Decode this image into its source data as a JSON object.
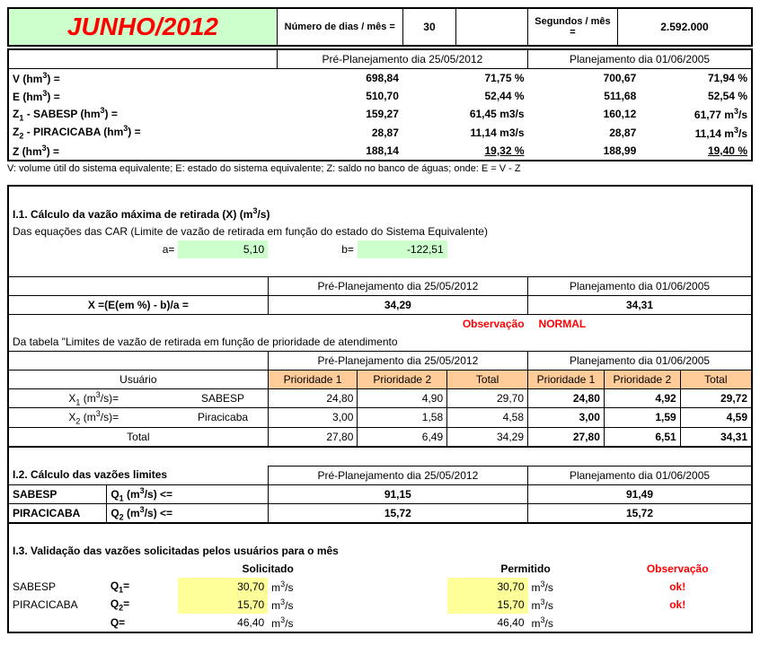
{
  "colors": {
    "title_bg": "#ccffcc",
    "title_text": "#ff0000",
    "peach": "#ffcc99",
    "green": "#ccffcc",
    "yellow": "#ffff99",
    "red": "#ff0000"
  },
  "header": {
    "title": "JUNHO/2012",
    "days_label": "Número de dias / mês =",
    "days_value": "30",
    "seconds_label": "Segundos / mês =",
    "seconds_value": "2.592.000"
  },
  "top": {
    "pre_label": "Pré-Planejamento dia 25/05/2012",
    "plan_label": "Planejamento dia 01/06/2005",
    "rows": [
      {
        "label_html": "V (hm<sup>3</sup>) =",
        "pre_v": "698,84",
        "pre_p": "71,75 %",
        "plan_v": "700,67",
        "plan_p": "71,94 %"
      },
      {
        "label_html": "E (hm<sup>3</sup>) =",
        "pre_v": "510,70",
        "pre_p": "52,44 %",
        "plan_v": "511,68",
        "plan_p": "52,54 %"
      }
    ],
    "rows2": [
      {
        "label_html": "Z<sub>1</sub> - SABESP (hm<sup>3</sup>) =",
        "pre_v": "159,27",
        "pre_p_html": "61,45 m3/s",
        "plan_v": "160,12",
        "plan_p_html": "61,77 m<sup>3</sup>/s"
      },
      {
        "label_html": "Z<sub>2</sub> - PIRACICABA (hm<sup>3</sup>) =",
        "pre_v": "28,87",
        "pre_p_html": "11,14 m3/s",
        "plan_v": "28,87",
        "plan_p_html": "11,14 m<sup>3</sup>/s"
      },
      {
        "label_html": "Z (hm<sup>3</sup>) =",
        "pre_v": "188,14",
        "pre_p_html": "19,32 %",
        "plan_v": "188,99",
        "plan_p_html": "19,40 %",
        "underline": true
      }
    ],
    "footnote": "V: volume útil do sistema equivalente; E: estado do sistema equivalente; Z: saldo no banco de águas; onde: E = V - Z"
  },
  "s1": {
    "title_html": "I.1. Cálculo da vazão máxima de retirada (X) (m<sup>3</sup>/s)",
    "subtitle": "Das equações das CAR (Limite de vazão de retirada em função do estado do Sistema Equivalente)",
    "a_label": "a=",
    "a_value": "5,10",
    "b_label": "b=",
    "b_value": "-122,51",
    "pre_label": "Pré-Planejamento dia 25/05/2012",
    "plan_label": "Planejamento dia 01/06/2005",
    "formula": "X =(E(em %) - b)/a =",
    "x_pre": "34,29",
    "x_plan": "34,31",
    "obs_label": "Observação",
    "obs_value": "NORMAL",
    "table_intro": "Da tabela \"Limites de vazão de retirada em função de prioridade de atendimento",
    "usuario_label": "Usuário",
    "p1": "Prioridade 1",
    "p2": "Prioridade 2",
    "total": "Total",
    "rows": [
      {
        "label_html": "X<sub>1</sub> (m<sup>3</sup>/s)=",
        "user": "SABESP",
        "pre": [
          "24,80",
          "4,90",
          "29,70"
        ],
        "plan": [
          "24,80",
          "4,92",
          "29,72"
        ]
      },
      {
        "label_html": "X<sub>2</sub> (m<sup>3</sup>/s)=",
        "user": "Piracicaba",
        "pre": [
          "3,00",
          "1,58",
          "4,58"
        ],
        "plan": [
          "3,00",
          "1,59",
          "4,59"
        ]
      }
    ],
    "total_row": {
      "label": "Total",
      "pre": [
        "27,80",
        "6,49",
        "34,29"
      ],
      "plan": [
        "27,80",
        "6,51",
        "34,31"
      ]
    }
  },
  "s2": {
    "title": "I.2. Cálculo das vazões limites",
    "pre_label": "Pré-Planejamento dia 25/05/2012",
    "plan_label": "Planejamento dia 01/06/2005",
    "rows": [
      {
        "name": "SABESP",
        "formula_html": "Q<sub>1</sub> (m<sup>3</sup>/s) &lt;=",
        "pre": "91,15",
        "plan": "91,49"
      },
      {
        "name": "PIRACICABA",
        "formula_html": "Q<sub>2</sub> (m<sup>3</sup>/s) &lt;=",
        "pre": "15,72",
        "plan": "15,72"
      }
    ]
  },
  "s3": {
    "title": "I.3. Validação das vazões solicitadas pelos usuários para o mês",
    "solicitado": "Solicitado",
    "permitido": "Permitido",
    "obs": "Observação",
    "unit_html": "m<sup>3</sup>/s",
    "rows": [
      {
        "name": "SABESP",
        "q_html": "Q<sub>1</sub>=",
        "sol": "30,70",
        "per": "30,70",
        "obs": "ok!",
        "hl": true
      },
      {
        "name": "PIRACICABA",
        "q_html": "Q<sub>2</sub>=",
        "sol": "15,70",
        "per": "15,70",
        "obs": "ok!",
        "hl": true
      },
      {
        "name": "",
        "q_html": "Q=",
        "sol": "46,40",
        "per": "46,40",
        "obs": "",
        "hl": false
      }
    ]
  }
}
